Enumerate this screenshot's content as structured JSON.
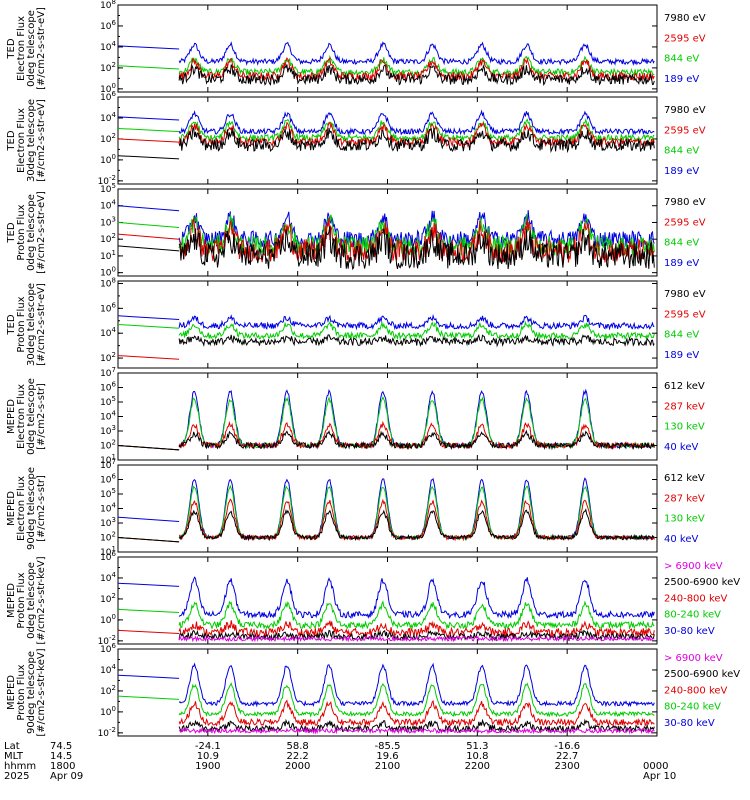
{
  "chart_data": {
    "type": "line",
    "title": "",
    "y_scale": "log",
    "x_ticks": {
      "positions_hours": [
        18,
        19,
        20,
        21,
        22,
        23,
        24
      ],
      "rows": [
        {
          "label": "Lat",
          "values": [
            "74.5",
            "-24.1",
            "58.8",
            "-85.5",
            "51.3",
            "-16.6",
            ""
          ]
        },
        {
          "label": "MLT",
          "values": [
            "14.5",
            "10.9",
            "22.2",
            "19.6",
            "10.8",
            "22.7",
            ""
          ]
        },
        {
          "label": "hhmm",
          "values": [
            "1800",
            "1900",
            "2000",
            "2100",
            "2200",
            "2300",
            "0000"
          ]
        },
        {
          "label": "2025",
          "values": [
            "Apr 09",
            "",
            "",
            "",
            "",
            "",
            "Apr 10"
          ]
        }
      ]
    },
    "panels": [
      {
        "id": "ted-electron-0deg",
        "ylabel": [
          "TED",
          "Electron Flux",
          "0deg telescope",
          "[#/cm2-s-str-eV]"
        ],
        "ylim_exp": [
          -0.3,
          8
        ],
        "ytick_exps": [
          0,
          2,
          4,
          6,
          8
        ],
        "legend": [
          {
            "label": "7980 eV",
            "color": "#000000"
          },
          {
            "label": "2595 eV",
            "color": "#e00000"
          },
          {
            "label": "844 eV",
            "color": "#00cc00"
          },
          {
            "label": "189 eV",
            "color": "#0000e0"
          }
        ],
        "series": [
          {
            "name": "189 eV",
            "color": "#0000e0",
            "base": 2.6,
            "peak": 1.6,
            "noise": 0.25,
            "pre": 4.1
          },
          {
            "name": "844 eV",
            "color": "#00cc00",
            "base": 1.6,
            "peak": 1.2,
            "noise": 0.3,
            "pre": 2.2
          },
          {
            "name": "2595 eV",
            "color": "#e00000",
            "base": 1.2,
            "peak": 1.4,
            "noise": 0.4,
            "pre": 0
          },
          {
            "name": "7980 eV",
            "color": "#000000",
            "base": 0.9,
            "peak": 1.0,
            "noise": 0.5,
            "pre": 0
          }
        ]
      },
      {
        "id": "ted-electron-30deg",
        "ylabel": [
          "TED",
          "Electron Flux",
          "30deg telescope",
          "[#/cm2-s-str-eV]"
        ],
        "ylim_exp": [
          -2.3,
          6
        ],
        "ytick_exps": [
          -2,
          0,
          2,
          4,
          6
        ],
        "legend": [
          {
            "label": "7980 eV",
            "color": "#000000"
          },
          {
            "label": "2595 eV",
            "color": "#e00000"
          },
          {
            "label": "844 eV",
            "color": "#00cc00"
          },
          {
            "label": "189 eV",
            "color": "#0000e0"
          }
        ],
        "series": [
          {
            "name": "189 eV",
            "color": "#0000e0",
            "base": 2.7,
            "peak": 1.7,
            "noise": 0.25,
            "pre": 4.1
          },
          {
            "name": "844 eV",
            "color": "#00cc00",
            "base": 2.1,
            "peak": 1.5,
            "noise": 0.3,
            "pre": 3.0
          },
          {
            "name": "2595 eV",
            "color": "#e00000",
            "base": 1.7,
            "peak": 1.5,
            "noise": 0.4,
            "pre": 2.0
          },
          {
            "name": "7980 eV",
            "color": "#000000",
            "base": 1.4,
            "peak": 1.2,
            "noise": 0.6,
            "pre": 0.4
          }
        ]
      },
      {
        "id": "ted-proton-0deg",
        "ylabel": [
          "TED",
          "Proton Flux",
          "0deg telescope",
          "[#/cm2-s-str-eV]"
        ],
        "ylim_exp": [
          -0.2,
          5
        ],
        "ytick_exps": [
          0,
          1,
          2,
          3,
          4,
          5
        ],
        "legend": [
          {
            "label": "7980 eV",
            "color": "#000000"
          },
          {
            "label": "2595 eV",
            "color": "#e00000"
          },
          {
            "label": "844 eV",
            "color": "#00cc00"
          },
          {
            "label": "189 eV",
            "color": "#0000e0"
          }
        ],
        "series": [
          {
            "name": "189 eV",
            "color": "#0000e0",
            "base": 2.0,
            "peak": 1.3,
            "noise": 0.5,
            "pre": 4.0
          },
          {
            "name": "844 eV",
            "color": "#00cc00",
            "base": 1.6,
            "peak": 1.4,
            "noise": 0.6,
            "pre": 3.0
          },
          {
            "name": "2595 eV",
            "color": "#e00000",
            "base": 1.3,
            "peak": 1.3,
            "noise": 0.7,
            "pre": 2.3
          },
          {
            "name": "7980 eV",
            "color": "#000000",
            "base": 1.0,
            "peak": 1.0,
            "noise": 0.8,
            "pre": 1.6
          }
        ]
      },
      {
        "id": "ted-proton-30deg",
        "ylabel": [
          "TED",
          "Proton Flux",
          "30deg telescope",
          "[#/cm2-s-str-eV]"
        ],
        "ylim_exp": [
          1.2,
          8.2
        ],
        "ytick_exps": [
          2,
          4,
          6,
          8
        ],
        "legend": [
          {
            "label": "7980 eV",
            "color": "#000000"
          },
          {
            "label": "2595 eV",
            "color": "#e00000"
          },
          {
            "label": "844 eV",
            "color": "#00cc00"
          },
          {
            "label": "189 eV",
            "color": "#0000e0"
          }
        ],
        "series": [
          {
            "name": "189 eV",
            "color": "#0000e0",
            "base": 4.6,
            "peak": 0.6,
            "noise": 0.25,
            "pre": 5.4
          },
          {
            "name": "844 eV",
            "color": "#00cc00",
            "base": 3.8,
            "peak": 0.9,
            "noise": 0.25,
            "pre": 4.7
          },
          {
            "name": "2595 eV",
            "color": "#e00000",
            "base": 0,
            "peak": 0,
            "noise": 0,
            "pre": 2.2
          },
          {
            "name": "7980 eV",
            "color": "#000000",
            "base": 3.3,
            "peak": 0.3,
            "noise": 0.3,
            "pre": 0
          }
        ]
      },
      {
        "id": "meped-electron-0deg",
        "ylabel": [
          "MEPED",
          "Electron Flux",
          "0deg telescope",
          "[#/cm2-s-str]"
        ],
        "ylim_exp": [
          1,
          7
        ],
        "ytick_exps": [
          1,
          2,
          3,
          4,
          5,
          6,
          7
        ],
        "legend": [
          {
            "label": "612 keV",
            "color": "#000000"
          },
          {
            "label": "287 keV",
            "color": "#e00000"
          },
          {
            "label": "130 keV",
            "color": "#00cc00"
          },
          {
            "label": "40 keV",
            "color": "#0000e0"
          }
        ],
        "series": [
          {
            "name": "40 keV",
            "color": "#0000e0",
            "base": 2.0,
            "peak": 3.7,
            "noise": 0.15,
            "pre": 2.0
          },
          {
            "name": "130 keV",
            "color": "#00cc00",
            "base": 2.0,
            "peak": 3.2,
            "noise": 0.15,
            "pre": 2.0
          },
          {
            "name": "287 keV",
            "color": "#e00000",
            "base": 2.0,
            "peak": 1.4,
            "noise": 0.2,
            "pre": 2.0
          },
          {
            "name": "612 keV",
            "color": "#000000",
            "base": 2.0,
            "peak": 0.8,
            "noise": 0.2,
            "pre": 2.0
          }
        ]
      },
      {
        "id": "meped-electron-90deg",
        "ylabel": [
          "MEPED",
          "Electron Flux",
          "90deg telescope",
          "[#/cm2-s-str]"
        ],
        "ylim_exp": [
          1,
          7
        ],
        "ytick_exps": [
          1,
          2,
          3,
          4,
          5,
          6,
          7
        ],
        "legend": [
          {
            "label": "612 keV",
            "color": "#000000"
          },
          {
            "label": "287 keV",
            "color": "#e00000"
          },
          {
            "label": "130 keV",
            "color": "#00cc00"
          },
          {
            "label": "40 keV",
            "color": "#0000e0"
          }
        ],
        "series": [
          {
            "name": "40 keV",
            "color": "#0000e0",
            "base": 2.0,
            "peak": 4.0,
            "noise": 0.1,
            "pre": 3.4
          },
          {
            "name": "130 keV",
            "color": "#00cc00",
            "base": 2.0,
            "peak": 3.5,
            "noise": 0.1,
            "pre": 2.0
          },
          {
            "name": "287 keV",
            "color": "#e00000",
            "base": 2.0,
            "peak": 2.5,
            "noise": 0.15,
            "pre": 2.0
          },
          {
            "name": "612 keV",
            "color": "#000000",
            "base": 2.0,
            "peak": 1.8,
            "noise": 0.15,
            "pre": 2.0
          }
        ]
      },
      {
        "id": "meped-proton-0deg",
        "ylabel": [
          "MEPED",
          "Proton Flux",
          "0deg telescope",
          "[#/cm2-s-str-keV]"
        ],
        "ylim_exp": [
          -2.3,
          6
        ],
        "ytick_exps": [
          -2,
          0,
          2,
          4,
          6
        ],
        "legend": [
          {
            "label": "> 6900 keV",
            "color": "#e000e0"
          },
          {
            "label": "2500-6900 keV",
            "color": "#000000"
          },
          {
            "label": "240-800 keV",
            "color": "#e00000"
          },
          {
            "label": "80-240 keV",
            "color": "#00cc00"
          },
          {
            "label": "30-80 keV",
            "color": "#0000e0"
          }
        ],
        "series": [
          {
            "name": "30-80 keV",
            "color": "#0000e0",
            "base": 0.5,
            "peak": 3.3,
            "noise": 0.3,
            "pre": 3.5
          },
          {
            "name": "80-240 keV",
            "color": "#00cc00",
            "base": -0.5,
            "peak": 2.0,
            "noise": 0.3,
            "pre": 1.0
          },
          {
            "name": "240-800 keV",
            "color": "#e00000",
            "base": -1.2,
            "peak": 0.8,
            "noise": 0.4,
            "pre": -1.0
          },
          {
            "name": "2500-6900 keV",
            "color": "#000000",
            "base": -1.6,
            "peak": 0.3,
            "noise": 0.3,
            "pre": 0
          },
          {
            "name": "> 6900 keV",
            "color": "#e000e0",
            "base": -1.8,
            "peak": 0,
            "noise": 0.2,
            "pre": 0
          }
        ]
      },
      {
        "id": "meped-proton-90deg",
        "ylabel": [
          "MEPED",
          "Proton Flux",
          "90deg telescope",
          "[#/cm2-s-str-keV]"
        ],
        "ylim_exp": [
          -2.3,
          6
        ],
        "ytick_exps": [
          -2,
          0,
          2,
          4,
          6
        ],
        "legend": [
          {
            "label": "> 6900 keV",
            "color": "#e000e0"
          },
          {
            "label": "2500-6900 keV",
            "color": "#000000"
          },
          {
            "label": "240-800 keV",
            "color": "#e00000"
          },
          {
            "label": "80-240 keV",
            "color": "#00cc00"
          },
          {
            "label": "30-80 keV",
            "color": "#0000e0"
          }
        ],
        "series": [
          {
            "name": "30-80 keV",
            "color": "#0000e0",
            "base": 0.8,
            "peak": 3.6,
            "noise": 0.2,
            "pre": 3.5
          },
          {
            "name": "80-240 keV",
            "color": "#00cc00",
            "base": -0.2,
            "peak": 2.8,
            "noise": 0.2,
            "pre": 1.5
          },
          {
            "name": "240-800 keV",
            "color": "#e00000",
            "base": -1.0,
            "peak": 1.8,
            "noise": 0.3,
            "pre": 0
          },
          {
            "name": "2500-6900 keV",
            "color": "#000000",
            "base": -1.6,
            "peak": 0.5,
            "noise": 0.3,
            "pre": 0
          },
          {
            "name": "> 6900 keV",
            "color": "#e000e0",
            "base": -1.8,
            "peak": 0,
            "noise": 0.2,
            "pre": 0
          }
        ]
      }
    ],
    "pass_centers_hours": [
      18.85,
      19.25,
      19.88,
      20.35,
      20.95,
      21.5,
      22.05,
      22.55,
      23.2
    ],
    "x_range_hours": [
      18,
      24
    ],
    "data_start_hours": 18.68
  }
}
